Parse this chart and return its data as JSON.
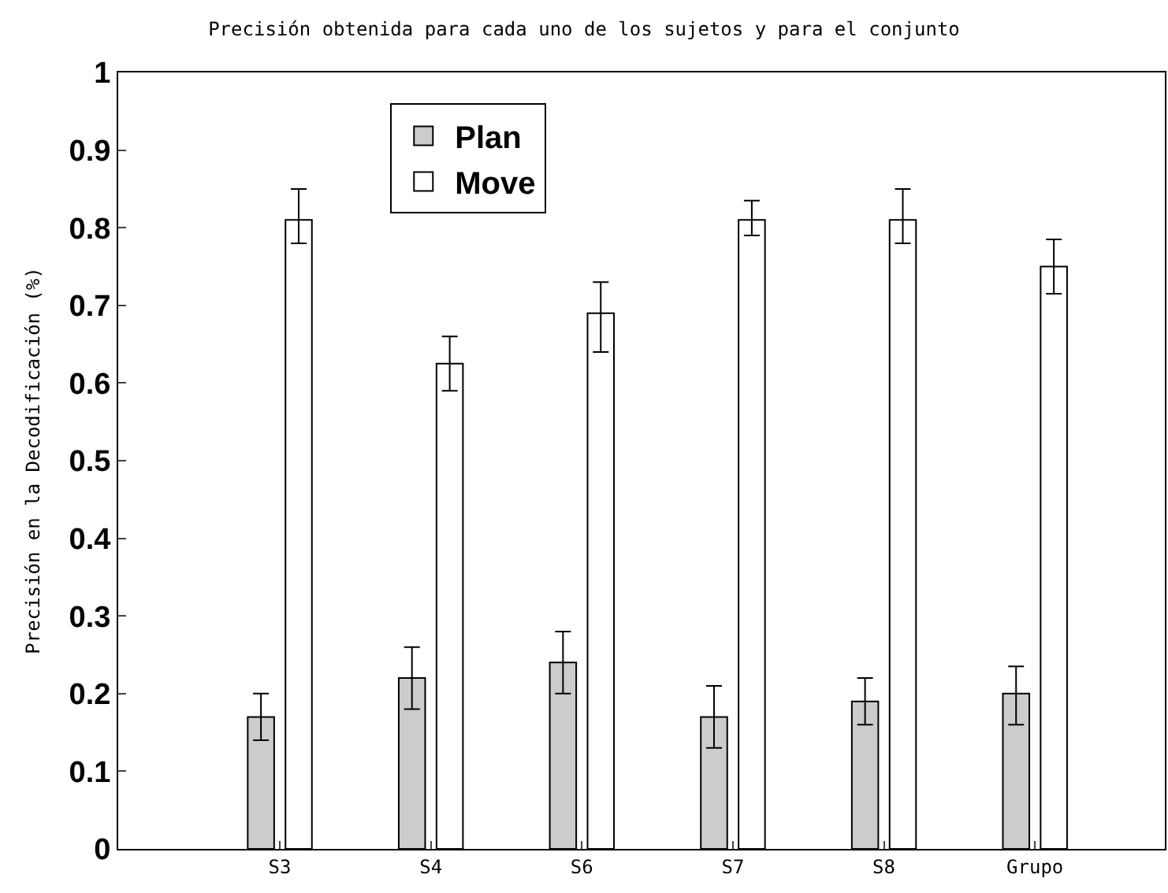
{
  "chart_data": {
    "type": "bar",
    "title": "Precisión obtenida para cada uno de los sujetos y para el conjunto",
    "ylabel": "Precisión en la Decodificación (%)",
    "categories": [
      "S3",
      "S4",
      "S6",
      "S7",
      "S8",
      "Grupo"
    ],
    "series": [
      {
        "name": "Plan",
        "color": "#cccccc",
        "values": [
          0.17,
          0.22,
          0.24,
          0.17,
          0.19,
          0.2
        ],
        "errors": [
          [
            0.14,
            0.2
          ],
          [
            0.18,
            0.26
          ],
          [
            0.2,
            0.28
          ],
          [
            0.13,
            0.21
          ],
          [
            0.16,
            0.22
          ],
          [
            0.16,
            0.235
          ]
        ]
      },
      {
        "name": "Move",
        "color": "#ffffff",
        "values": [
          0.81,
          0.625,
          0.69,
          0.81,
          0.81,
          0.75
        ],
        "errors": [
          [
            0.78,
            0.85
          ],
          [
            0.59,
            0.66
          ],
          [
            0.64,
            0.73
          ],
          [
            0.79,
            0.835
          ],
          [
            0.78,
            0.85
          ],
          [
            0.715,
            0.785
          ]
        ]
      }
    ],
    "ylim": [
      0,
      1
    ],
    "yticks": [
      0,
      0.1,
      0.2,
      0.3,
      0.4,
      0.5,
      0.6,
      0.7,
      0.8,
      0.9,
      1
    ],
    "legend": "top left"
  }
}
